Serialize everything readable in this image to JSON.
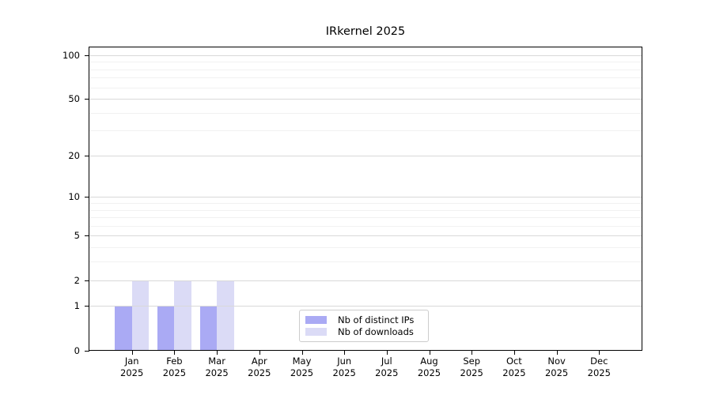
{
  "chart_data": {
    "type": "bar",
    "title": "IRkernel 2025",
    "categories": [
      {
        "month": "Jan",
        "year": "2025"
      },
      {
        "month": "Feb",
        "year": "2025"
      },
      {
        "month": "Mar",
        "year": "2025"
      },
      {
        "month": "Apr",
        "year": "2025"
      },
      {
        "month": "May",
        "year": "2025"
      },
      {
        "month": "Jun",
        "year": "2025"
      },
      {
        "month": "Jul",
        "year": "2025"
      },
      {
        "month": "Aug",
        "year": "2025"
      },
      {
        "month": "Sep",
        "year": "2025"
      },
      {
        "month": "Oct",
        "year": "2025"
      },
      {
        "month": "Nov",
        "year": "2025"
      },
      {
        "month": "Dec",
        "year": "2025"
      }
    ],
    "series": [
      {
        "name": "Nb of distinct IPs",
        "color": "#aaaaf4",
        "values": [
          1,
          1,
          1,
          null,
          null,
          null,
          null,
          null,
          null,
          null,
          null,
          null
        ]
      },
      {
        "name": "Nb of downloads",
        "color": "#dbdbf6",
        "values": [
          2,
          2,
          2,
          null,
          null,
          null,
          null,
          null,
          null,
          null,
          null,
          null
        ]
      }
    ],
    "y_axis": {
      "scale": "log1p",
      "tick_values": [
        0,
        1,
        2,
        5,
        10,
        20,
        50,
        100
      ],
      "minor_gridline_values": [
        3,
        4,
        6,
        7,
        8,
        9,
        30,
        40,
        60,
        70,
        80,
        90
      ],
      "range": [
        0,
        113
      ]
    },
    "legend": {
      "position": "lower-center"
    },
    "style": {
      "major_grid_color": "#d9d9d9",
      "minor_grid_color": "#f1f1f1",
      "spine_color": "#000000",
      "text_color": "#000000",
      "background": "#ffffff"
    }
  }
}
